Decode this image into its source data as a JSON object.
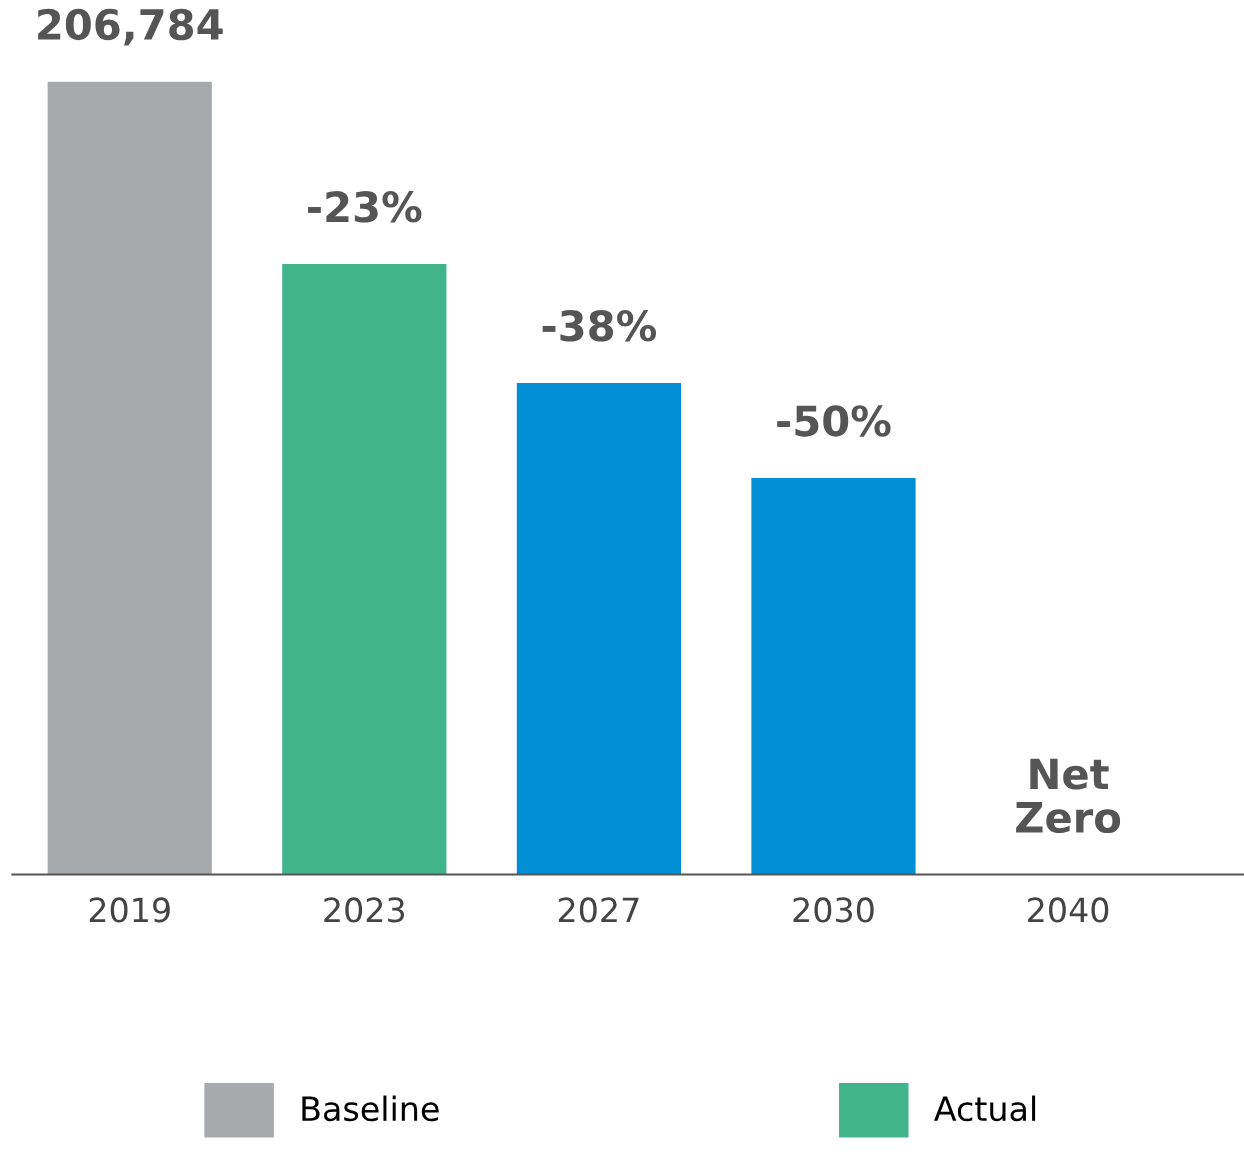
{
  "chart_data": {
    "type": "bar",
    "tick_labels": "x",
    "categories": [
      "2019",
      "2023",
      "2027",
      "2030",
      "2040"
    ],
    "series": [
      {
        "name": "Baseline",
        "color": "#a7aaad",
        "values": [
          206784,
          null,
          null,
          null,
          null
        ],
        "value_labels": [
          "206,784",
          null,
          null,
          null,
          null
        ]
      },
      {
        "name": "Actual",
        "color": "#42b48c",
        "values": [
          null,
          159224,
          null,
          null,
          null
        ],
        "value_labels": [
          null,
          null,
          null,
          null,
          null
        ]
      },
      {
        "color": "#008fd5",
        "values": [
          null,
          null,
          128206,
          103392,
          0
        ],
        "value_labels": [
          null,
          null,
          null,
          null,
          null
        ]
      }
    ],
    "annotations": [
      {
        "text": "-23%",
        "x": "2023",
        "y": 159224
      },
      {
        "text": "-38%",
        "x": "2027",
        "y": 128206
      },
      {
        "text": "-50%",
        "x": "2030",
        "y": 103392
      },
      {
        "text": "Net Zero",
        "x": "2040",
        "y": 0
      }
    ],
    "legend": "bottom",
    "grid": false
  }
}
